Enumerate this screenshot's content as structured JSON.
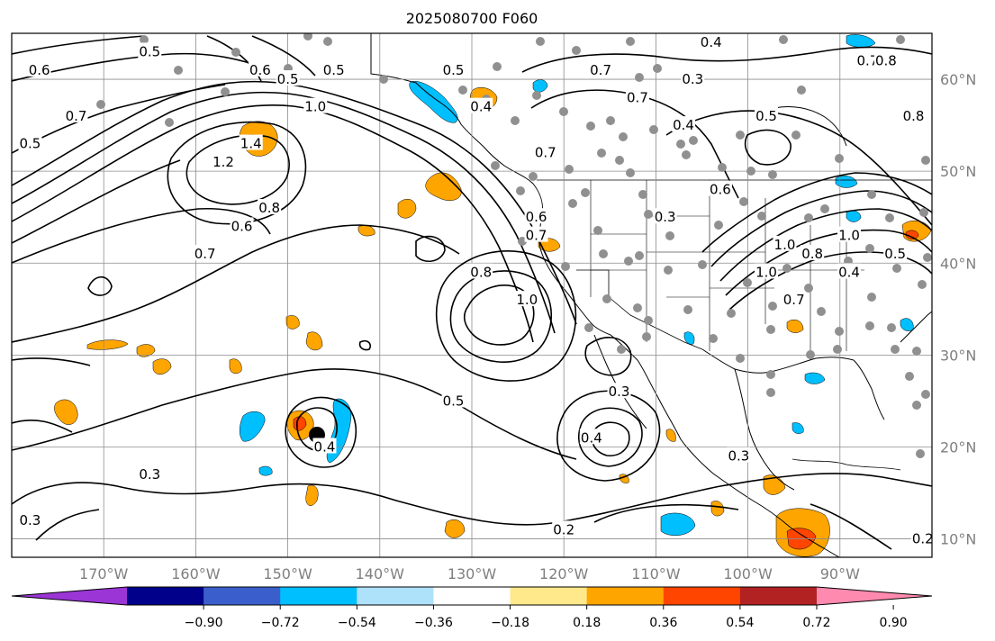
{
  "title": "2025080700 F060",
  "map": {
    "lon_range": [
      -180,
      -80
    ],
    "lat_range": [
      8,
      65
    ],
    "lon_ticks": [
      {
        "value": -170,
        "label": "170°W"
      },
      {
        "value": -160,
        "label": "160°W"
      },
      {
        "value": -150,
        "label": "150°W"
      },
      {
        "value": -140,
        "label": "140°W"
      },
      {
        "value": -130,
        "label": "130°W"
      },
      {
        "value": -120,
        "label": "120°W"
      },
      {
        "value": -110,
        "label": "110°W"
      },
      {
        "value": -100,
        "label": "100°W"
      },
      {
        "value": -90,
        "label": "90°W"
      }
    ],
    "lat_ticks": [
      {
        "value": 60,
        "label": "60°N"
      },
      {
        "value": 50,
        "label": "50°N"
      },
      {
        "value": 40,
        "label": "40°N"
      },
      {
        "value": 30,
        "label": "30°N"
      },
      {
        "value": 20,
        "label": "20°N"
      },
      {
        "value": 10,
        "label": "10°N"
      }
    ],
    "contour_labels": [
      {
        "lon": -177,
        "lat": 61,
        "text": "0.6"
      },
      {
        "lon": -173,
        "lat": 56,
        "text": "0.7"
      },
      {
        "lon": -178,
        "lat": 53,
        "text": "0.5"
      },
      {
        "lon": -165,
        "lat": 63,
        "text": "0.5"
      },
      {
        "lon": -153,
        "lat": 61,
        "text": "0.6"
      },
      {
        "lon": -150,
        "lat": 60,
        "text": "0.5"
      },
      {
        "lon": -147,
        "lat": 57,
        "text": "1.0"
      },
      {
        "lon": -157,
        "lat": 51,
        "text": "1.2"
      },
      {
        "lon": -154,
        "lat": 53,
        "text": "1.4"
      },
      {
        "lon": -145,
        "lat": 61,
        "text": "0.5"
      },
      {
        "lon": -152,
        "lat": 46,
        "text": "0.8"
      },
      {
        "lon": -155,
        "lat": 44,
        "text": "0.6"
      },
      {
        "lon": -159,
        "lat": 41,
        "text": "0.7"
      },
      {
        "lon": -132,
        "lat": 61,
        "text": "0.5"
      },
      {
        "lon": -129,
        "lat": 57,
        "text": "0.4"
      },
      {
        "lon": -116,
        "lat": 61,
        "text": "0.7"
      },
      {
        "lon": -112,
        "lat": 58,
        "text": "0.7"
      },
      {
        "lon": -106,
        "lat": 60,
        "text": "0.3"
      },
      {
        "lon": -104,
        "lat": 64,
        "text": "0.4"
      },
      {
        "lon": -107,
        "lat": 55,
        "text": "0.4"
      },
      {
        "lon": -98,
        "lat": 56,
        "text": "0.5"
      },
      {
        "lon": -87,
        "lat": 62,
        "text": "0.7"
      },
      {
        "lon": -85,
        "lat": 62,
        "text": "0.8"
      },
      {
        "lon": -82,
        "lat": 56,
        "text": "0.8"
      },
      {
        "lon": -103,
        "lat": 48,
        "text": "0.6"
      },
      {
        "lon": -109,
        "lat": 45,
        "text": "0.3"
      },
      {
        "lon": -122,
        "lat": 52,
        "text": "0.7"
      },
      {
        "lon": -123,
        "lat": 45,
        "text": "0.6"
      },
      {
        "lon": -123,
        "lat": 43,
        "text": "0.7"
      },
      {
        "lon": -96,
        "lat": 42,
        "text": "1.0"
      },
      {
        "lon": -89,
        "lat": 43,
        "text": "1.0"
      },
      {
        "lon": -93,
        "lat": 41,
        "text": "0.8"
      },
      {
        "lon": -89,
        "lat": 39,
        "text": "0.4"
      },
      {
        "lon": -84,
        "lat": 41,
        "text": "0.5"
      },
      {
        "lon": -98,
        "lat": 39,
        "text": "1.0"
      },
      {
        "lon": -95,
        "lat": 36,
        "text": "0.7"
      },
      {
        "lon": -129,
        "lat": 39,
        "text": "0.8"
      },
      {
        "lon": -124,
        "lat": 36,
        "text": "1.0"
      },
      {
        "lon": -132,
        "lat": 25,
        "text": "0.5"
      },
      {
        "lon": -114,
        "lat": 26,
        "text": "0.3"
      },
      {
        "lon": -117,
        "lat": 21,
        "text": "0.4"
      },
      {
        "lon": -101,
        "lat": 19,
        "text": "0.3"
      },
      {
        "lon": -146,
        "lat": 20,
        "text": "0.4"
      },
      {
        "lon": -165,
        "lat": 17,
        "text": "0.3"
      },
      {
        "lon": -178,
        "lat": 12,
        "text": "0.3"
      },
      {
        "lon": -120,
        "lat": 11,
        "text": "0.2"
      },
      {
        "lon": -81,
        "lat": 10,
        "text": "0.2"
      }
    ]
  },
  "colorbar": {
    "tick_labels": [
      "−0.90",
      "−0.72",
      "−0.54",
      "−0.36",
      "−0.18",
      "0.18",
      "0.36",
      "0.54",
      "0.72",
      "0.90"
    ],
    "colors": [
      "#9b35d6",
      "#00008b",
      "#3a5fcd",
      "#00bfff",
      "#aee1fa",
      "#ffffff",
      "#ffe98a",
      "#ffa500",
      "#ff4500",
      "#b22222",
      "#ff8ab0"
    ]
  },
  "colors": {
    "land": "#ffffff",
    "grid": "#8c8c8c",
    "contour": "#000000",
    "station_dot": "#909090",
    "storm_marker": "#000000"
  }
}
